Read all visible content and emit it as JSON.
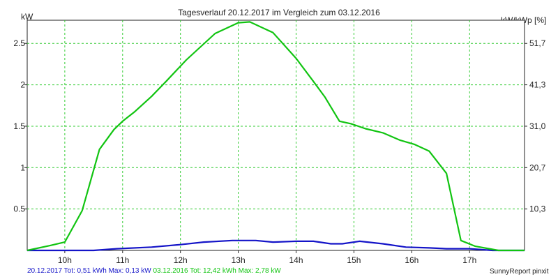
{
  "chart_data": {
    "type": "line",
    "title": "Tagesverlauf 20.12.2017 im Vergleich zum 03.12.2016",
    "ylabel_left": "kW",
    "ylabel_right": "kW/kWp [%]",
    "xlim": [
      9.35,
      17.95
    ],
    "ylim": [
      0,
      2.78
    ],
    "x_ticks": [
      {
        "x": 10,
        "label": "10h"
      },
      {
        "x": 11,
        "label": "11h"
      },
      {
        "x": 12,
        "label": "12h"
      },
      {
        "x": 13,
        "label": "13h"
      },
      {
        "x": 14,
        "label": "14h"
      },
      {
        "x": 15,
        "label": "15h"
      },
      {
        "x": 16,
        "label": "16h"
      },
      {
        "x": 17,
        "label": "17h"
      }
    ],
    "y_ticks_left": [
      {
        "y": 0.5,
        "label": "0.5"
      },
      {
        "y": 1,
        "label": "1"
      },
      {
        "y": 1.5,
        "label": "1.5"
      },
      {
        "y": 2,
        "label": "2"
      },
      {
        "y": 2.5,
        "label": "2.5"
      }
    ],
    "y_ticks_right": [
      {
        "y": 0.5,
        "label": "10,3"
      },
      {
        "y": 1,
        "label": "20,7"
      },
      {
        "y": 1.5,
        "label": "31,0"
      },
      {
        "y": 2,
        "label": "41,3"
      },
      {
        "y": 2.5,
        "label": "51,7"
      }
    ],
    "grid": true,
    "series": [
      {
        "name": "20.12.2017",
        "color": "#1414c8",
        "x": [
          9.35,
          10.0,
          10.5,
          10.9,
          11.5,
          12.0,
          12.4,
          12.9,
          13.3,
          13.6,
          14.0,
          14.3,
          14.6,
          14.8,
          15.1,
          15.5,
          15.9,
          16.3,
          16.6,
          17.0,
          17.4,
          17.95
        ],
        "y": [
          0.0,
          0.0,
          0.0,
          0.02,
          0.04,
          0.07,
          0.1,
          0.12,
          0.12,
          0.1,
          0.11,
          0.11,
          0.08,
          0.08,
          0.11,
          0.08,
          0.04,
          0.03,
          0.02,
          0.02,
          0.0,
          0.0
        ]
      },
      {
        "name": "03.12.2016",
        "color": "#11c411",
        "x": [
          9.35,
          9.75,
          10.0,
          10.3,
          10.6,
          10.85,
          11.0,
          11.2,
          11.5,
          11.75,
          12.1,
          12.6,
          13.0,
          13.2,
          13.6,
          14.0,
          14.3,
          14.5,
          14.75,
          14.95,
          15.2,
          15.5,
          15.8,
          16.05,
          16.3,
          16.6,
          16.85,
          17.1,
          17.5,
          17.95
        ],
        "y": [
          0.0,
          0.06,
          0.1,
          0.48,
          1.22,
          1.46,
          1.56,
          1.67,
          1.86,
          2.04,
          2.3,
          2.62,
          2.75,
          2.76,
          2.63,
          2.32,
          2.04,
          1.85,
          1.56,
          1.53,
          1.47,
          1.42,
          1.33,
          1.28,
          1.2,
          0.93,
          0.12,
          0.05,
          0.0,
          0.0
        ]
      }
    ]
  },
  "footer": {
    "series1_text": "20.12.2017 Tot: 0,51 kWh Max: 0,13 kW",
    "series2_text": "03.12.2016 Tot: 12,42 kWh Max: 2,78 kW"
  },
  "brand": "SunnyReport pinxit"
}
